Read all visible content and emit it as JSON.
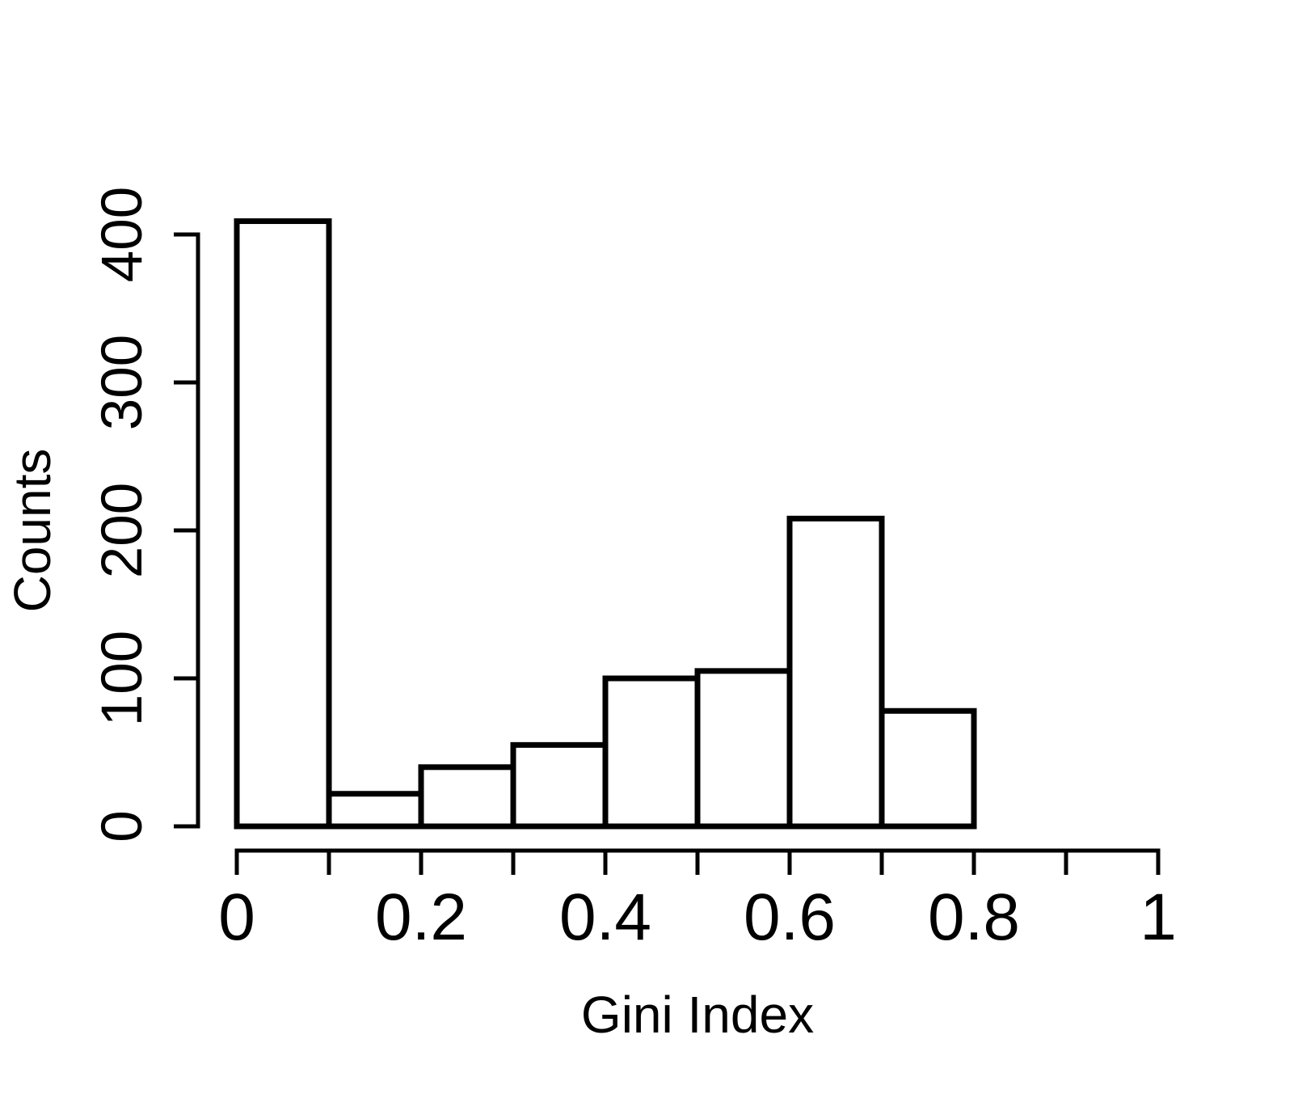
{
  "figure": {
    "background_color": "#ffffff",
    "foreground_color": "#000000"
  },
  "chart_data": {
    "type": "bar",
    "subtype": "histogram",
    "title": "",
    "xlabel": "Gini Index",
    "ylabel": "Counts",
    "bar_fill": "#ffffff",
    "bar_stroke": "#000000",
    "grid": false,
    "legend": null,
    "xlim": [
      0,
      1
    ],
    "ylim": [
      0,
      400
    ],
    "bin_width": 0.1,
    "bin_edges": [
      0,
      0.1,
      0.2,
      0.3,
      0.4,
      0.5,
      0.6,
      0.7,
      0.8
    ],
    "counts": [
      409,
      22,
      40,
      55,
      100,
      105,
      208,
      78
    ],
    "x_ticks": [
      0,
      0.1,
      0.2,
      0.3,
      0.4,
      0.5,
      0.6,
      0.7,
      0.8,
      0.9,
      1
    ],
    "x_tick_labels": [
      "0",
      "",
      "0.2",
      "",
      "0.4",
      "",
      "0.6",
      "",
      "0.8",
      "",
      "1"
    ],
    "y_ticks": [
      0,
      100,
      200,
      300,
      400
    ],
    "y_tick_labels": [
      "0",
      "100",
      "200",
      "300",
      "400"
    ]
  }
}
